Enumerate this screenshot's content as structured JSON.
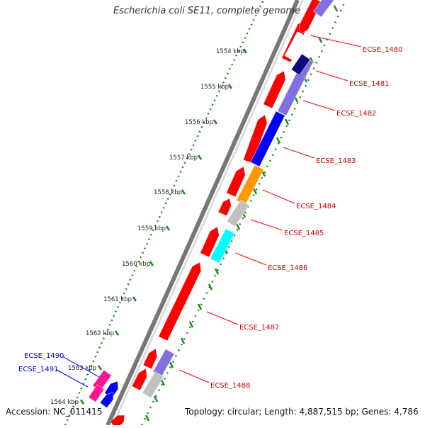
{
  "title": "Escherichia coli SE11, complete genome",
  "footer": {
    "accession": "Accession: NC_011415",
    "summary": "Topology: circular; Length: 4,887,515 bp; Genes: 4,786"
  },
  "scale_ticks": [
    "1554 kbp",
    "1555 kbp",
    "1556 kbp",
    "1557 kbp",
    "1558 kbp",
    "1559 kbp",
    "1560 kbp",
    "1561 kbp",
    "1562 kbp",
    "1563 kbp",
    "1564 kbp"
  ],
  "gene_labels_right": [
    "ECSE_1480",
    "ECSE_1481",
    "ECSE_1482",
    "ECSE_1483",
    "ECSE_1484",
    "ECSE_1485",
    "ECSE_1486",
    "ECSE_1487",
    "ECSE_1488"
  ],
  "gene_labels_left": [
    "ECSE_1490",
    "ECSE_1491"
  ],
  "colors": {
    "gene_red": "#ff0000",
    "label_red": "#cc0000",
    "label_blue": "#0000cc",
    "backbone_gray": "#888888",
    "gc_green": "#1a8a1a",
    "cog_blue": "#0000ff",
    "cog_lavender": "#8070e0",
    "cog_navy": "#0a0a7a",
    "cog_orange": "#ff9900",
    "cog_gray": "#c0c0c0",
    "cog_cyan": "#00ffff",
    "cog_magenta": "#ff1493"
  }
}
